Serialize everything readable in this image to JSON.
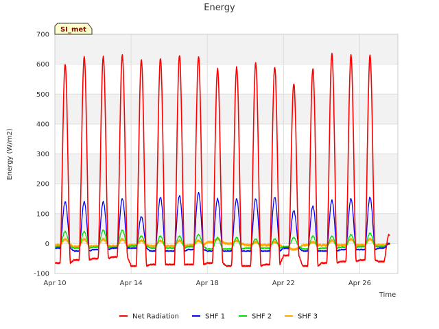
{
  "chart_data": {
    "type": "line",
    "title": "Energy",
    "xlabel": "Time",
    "ylabel": "Energy (W/m2)",
    "site_label": "SI_met",
    "xlim": [
      "2024-04-10",
      "2024-04-28"
    ],
    "ylim": [
      -100,
      700
    ],
    "x_ticks": [
      {
        "date": "2024-04-10",
        "label": "Apr 10"
      },
      {
        "date": "2024-04-14",
        "label": "Apr 14"
      },
      {
        "date": "2024-04-18",
        "label": "Apr 18"
      },
      {
        "date": "2024-04-22",
        "label": "Apr 22"
      },
      {
        "date": "2024-04-26",
        "label": "Apr 26"
      }
    ],
    "y_ticks": [
      -100,
      0,
      100,
      200,
      300,
      400,
      500,
      600,
      700
    ],
    "grid": true,
    "legend_position": "bottom",
    "days": [
      "2024-04-10",
      "2024-04-11",
      "2024-04-12",
      "2024-04-13",
      "2024-04-14",
      "2024-04-15",
      "2024-04-16",
      "2024-04-17",
      "2024-04-18",
      "2024-04-19",
      "2024-04-20",
      "2024-04-21",
      "2024-04-22",
      "2024-04-23",
      "2024-04-24",
      "2024-04-25",
      "2024-04-26",
      "2024-04-27"
    ],
    "series": [
      {
        "name": "Net Radiation",
        "color": "#ff0000",
        "daily_peak": [
          600,
          625,
          625,
          630,
          615,
          620,
          630,
          625,
          585,
          590,
          605,
          590,
          535,
          585,
          635,
          630,
          630,
          30
        ],
        "night_value": [
          -65,
          -55,
          -50,
          -45,
          -75,
          -70,
          -70,
          -70,
          -65,
          -75,
          -75,
          -70,
          -40,
          -75,
          -65,
          -60,
          -55,
          -60
        ]
      },
      {
        "name": "SHF 1",
        "color": "#0000ff",
        "daily_peak": [
          140,
          140,
          140,
          150,
          90,
          155,
          160,
          170,
          150,
          150,
          150,
          155,
          110,
          125,
          145,
          150,
          155,
          0
        ],
        "night_value": [
          -15,
          -25,
          -20,
          -15,
          -15,
          -25,
          -25,
          -20,
          -25,
          -25,
          -25,
          -25,
          -15,
          -25,
          -25,
          -20,
          -20,
          -15
        ]
      },
      {
        "name": "SHF 2",
        "color": "#00dd00",
        "daily_peak": [
          40,
          40,
          45,
          45,
          25,
          25,
          25,
          30,
          20,
          20,
          15,
          15,
          20,
          25,
          25,
          30,
          35,
          0
        ],
        "night_value": [
          -10,
          -15,
          -12,
          -12,
          -8,
          -15,
          -15,
          -10,
          -18,
          -18,
          -15,
          -15,
          -10,
          -18,
          -15,
          -12,
          -10,
          -10
        ]
      },
      {
        "name": "SHF 3",
        "color": "#ffa500",
        "daily_peak": [
          15,
          15,
          15,
          15,
          10,
          10,
          10,
          10,
          15,
          10,
          5,
          5,
          -20,
          5,
          10,
          15,
          15,
          0
        ],
        "night_value": [
          -5,
          -10,
          -8,
          -8,
          -5,
          -8,
          -8,
          -5,
          5,
          0,
          -5,
          -5,
          -15,
          -5,
          -5,
          -5,
          -5,
          -5
        ]
      }
    ]
  }
}
